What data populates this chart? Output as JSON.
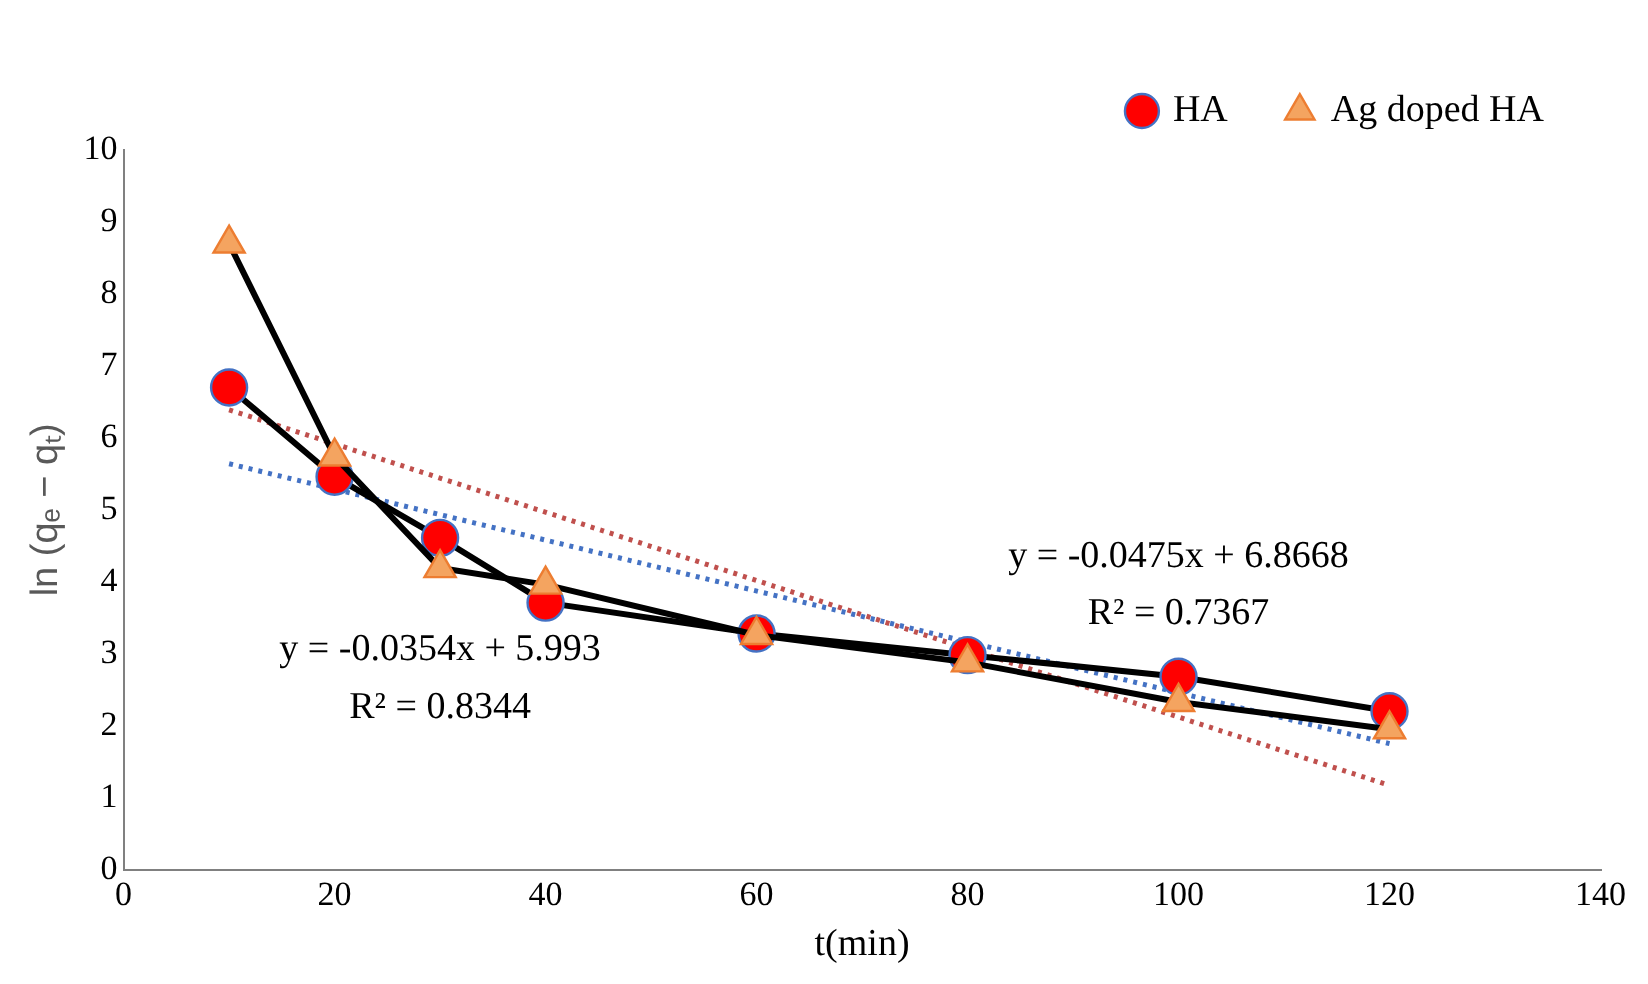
{
  "chart_data": {
    "type": "line",
    "xlabel": "t(min)",
    "ylabel": "ln (qₑ − qₜ)",
    "xlim": [
      0,
      140
    ],
    "xticks": [
      0,
      20,
      40,
      60,
      80,
      100,
      120,
      140
    ],
    "ylim": [
      0,
      10
    ],
    "yticks": [
      0,
      1,
      2,
      3,
      4,
      5,
      6,
      7,
      8,
      9,
      10
    ],
    "grid": false,
    "legend": "top right",
    "x": [
      10,
      20,
      30,
      40,
      60,
      80,
      100,
      120
    ],
    "series": [
      {
        "name": "HA",
        "color": "#ff0000",
        "marker": "circle",
        "line_style": "solid",
        "values": [
          6.7,
          5.46,
          4.61,
          3.71,
          3.28,
          2.98,
          2.68,
          2.2
        ]
      },
      {
        "name": "Ag doped HA",
        "color": "#f4a460",
        "marker": "triangle",
        "line_style": "solid",
        "values": [
          8.7,
          5.74,
          4.19,
          3.96,
          3.26,
          2.88,
          2.33,
          1.95
        ]
      },
      {
        "color": "#4472c4",
        "marker": "none",
        "line_style": "dotted",
        "values": [
          5.64,
          null,
          null,
          null,
          null,
          null,
          null,
          1.75
        ]
      },
      {
        "color": "#c0504d",
        "marker": "none",
        "line_style": "dotted",
        "values": [
          6.39,
          null,
          null,
          null,
          null,
          null,
          null,
          1.17
        ]
      }
    ],
    "annotations": [
      "y = -0.0354x + 5.993",
      "R² = 0.8344",
      "y = -0.0475x + 6.8668",
      "R² = 0.7367"
    ]
  }
}
